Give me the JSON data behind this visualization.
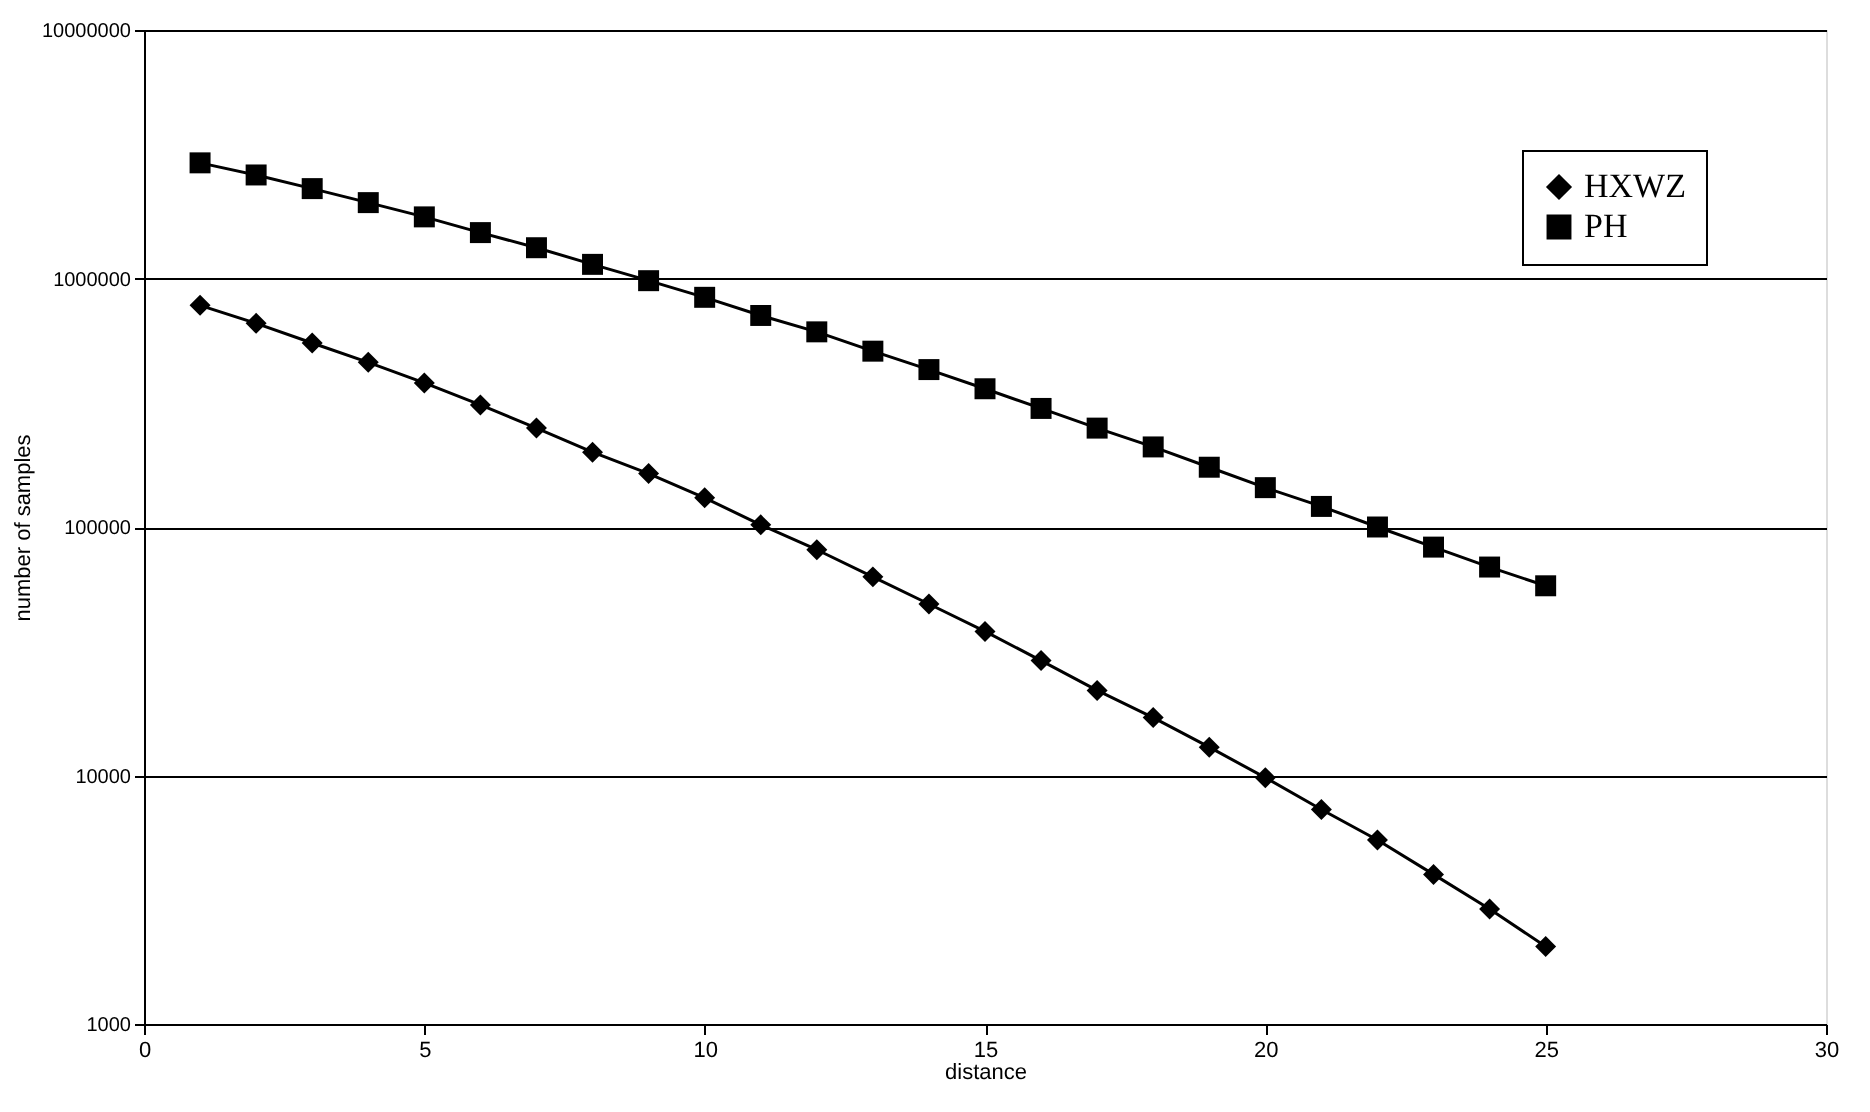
{
  "chart_data": {
    "type": "line",
    "xlabel": "distance",
    "ylabel": "number of samples",
    "log": "y",
    "grid": "y",
    "legend": "top right",
    "x": [
      1,
      2,
      3,
      4,
      5,
      6,
      7,
      8,
      9,
      10,
      11,
      12,
      13,
      14,
      15,
      16,
      17,
      18,
      19,
      20,
      21,
      22,
      23,
      24,
      25
    ],
    "series": [
      {
        "name": "HXWZ",
        "color": "#000000",
        "marker": "diamond",
        "values": [
          780000,
          660000,
          550000,
          460000,
          380000,
          310000,
          250000,
          200000,
          164000,
          131000,
          102000,
          81000,
          63000,
          49000,
          38000,
          29000,
          22000,
          17100,
          13000,
          9800,
          7300,
          5500,
          4000,
          2900,
          2050
        ]
      },
      {
        "name": "PH",
        "color": "#000000",
        "marker": "square",
        "values": [
          2920000,
          2610000,
          2300000,
          2020000,
          1770000,
          1530000,
          1330000,
          1140000,
          980000,
          840000,
          710000,
          610000,
          510000,
          430000,
          360000,
          300000,
          250000,
          210000,
          174000,
          144000,
          121000,
          100000,
          83000,
          69000,
          58000
        ]
      }
    ],
    "xlim": [
      0,
      30
    ],
    "xticks": [
      0,
      5,
      10,
      15,
      20,
      25,
      30
    ],
    "ylim": [
      1000,
      10000000
    ],
    "yticks": [
      1000,
      10000,
      100000,
      1000000,
      10000000
    ]
  }
}
